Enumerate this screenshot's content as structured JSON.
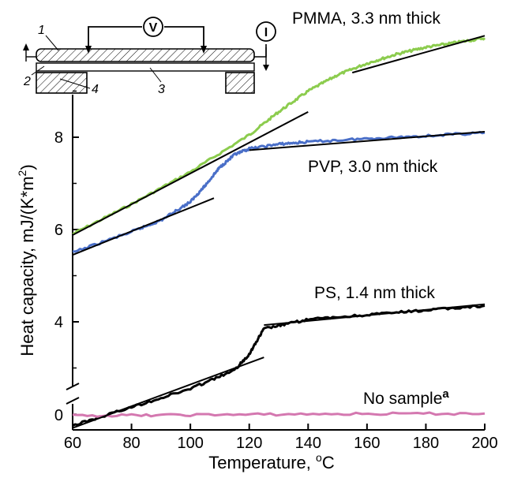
{
  "chart_data": {
    "type": "line",
    "xlabel": "Temperature, °C",
    "ylabel": "Heat capacity, mJ/(K*m²)",
    "xlim": [
      60,
      200
    ],
    "x_ticks": [
      60,
      80,
      100,
      120,
      140,
      160,
      180,
      200
    ],
    "y_ticks_upper": [
      4,
      6,
      8
    ],
    "y_ticks_lower": [
      0
    ],
    "axis_break": "y",
    "grid": false,
    "legend": "none",
    "series": [
      {
        "name": "PMMA, 3.3 nm thick",
        "color": "#8ccc4e",
        "x": [
          60,
          80,
          100,
          120,
          130,
          140,
          150,
          160,
          170,
          180,
          190,
          200
        ],
        "y": [
          5.9,
          6.55,
          7.25,
          8.05,
          8.55,
          9.0,
          9.35,
          9.6,
          9.8,
          9.95,
          10.05,
          10.15
        ]
      },
      {
        "name": "PVP, 3.0 nm thick",
        "color": "#4a6fc8",
        "x": [
          60,
          80,
          90,
          100,
          105,
          110,
          115,
          120,
          130,
          140,
          160,
          180,
          200
        ],
        "y": [
          5.5,
          5.95,
          6.2,
          6.6,
          6.95,
          7.35,
          7.62,
          7.75,
          7.85,
          7.9,
          7.97,
          8.03,
          8.1
        ]
      },
      {
        "name": "PS, 1.4 nm thick",
        "color": "#000000",
        "x": [
          60,
          80,
          100,
          115,
          120,
          125,
          140,
          160,
          180,
          200
        ],
        "y": [
          1.75,
          2.15,
          2.55,
          2.95,
          3.3,
          3.85,
          4.05,
          4.15,
          4.25,
          4.35
        ]
      },
      {
        "name": "No sample",
        "color": "#d478b0",
        "x": [
          60,
          100,
          150,
          200
        ],
        "y": [
          -0.02,
          0.0,
          0.02,
          0.03
        ]
      }
    ],
    "fit_lines": [
      {
        "x": [
          60,
          140
        ],
        "y": [
          5.88,
          8.55
        ]
      },
      {
        "x": [
          155,
          200
        ],
        "y": [
          9.4,
          10.2
        ]
      },
      {
        "x": [
          60,
          108
        ],
        "y": [
          5.45,
          6.68
        ]
      },
      {
        "x": [
          120,
          200
        ],
        "y": [
          7.72,
          8.12
        ]
      },
      {
        "x": [
          60,
          125
        ],
        "y": [
          1.7,
          3.23
        ]
      },
      {
        "x": [
          125,
          200
        ],
        "y": [
          3.93,
          4.38
        ]
      }
    ],
    "annotations": [
      "PMMA, 3.3 nm thick",
      "PVP, 3.0 nm thick",
      "PS, 1.4 nm thick",
      "No sample",
      "a"
    ]
  },
  "inset": {
    "labels": [
      "1",
      "2",
      "3",
      "4"
    ],
    "voltmeter": "V",
    "ammeter": "I"
  }
}
